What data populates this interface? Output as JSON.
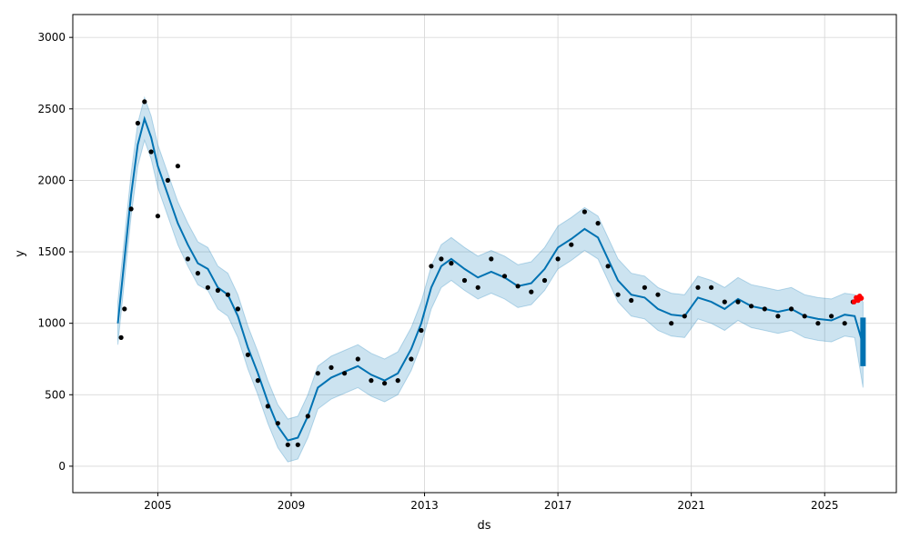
{
  "chart_data": {
    "type": "line",
    "title": "",
    "xlabel": "ds",
    "ylabel": "y",
    "grid": true,
    "xlim": [
      2002.45,
      2027.15
    ],
    "ylim": [
      -185,
      3160
    ],
    "x_ticks": [
      2005,
      2009,
      2013,
      2017,
      2021,
      2025
    ],
    "x_tick_labels": [
      "2005",
      "2009",
      "2013",
      "2017",
      "2021",
      "2025"
    ],
    "y_ticks": [
      0,
      500,
      1000,
      1500,
      2000,
      2500,
      3000
    ],
    "y_tick_labels": [
      "0",
      "500",
      "1000",
      "1500",
      "2000",
      "2500",
      "3000"
    ],
    "colors": {
      "observed": "#000000",
      "forecast": "#0072B2",
      "uncertainty": "#0072B2",
      "recent": "#ff0000",
      "grid": "#d9d9d9"
    },
    "series": [
      {
        "kind": "forecast",
        "x": [
          2003.8,
          2004.0,
          2004.2,
          2004.4,
          2004.6,
          2004.8,
          2005.0,
          2005.3,
          2005.6,
          2005.9,
          2006.2,
          2006.5,
          2006.8,
          2007.1,
          2007.4,
          2007.7,
          2008.0,
          2008.3,
          2008.6,
          2008.9,
          2009.2,
          2009.5,
          2009.8,
          2010.2,
          2010.6,
          2011.0,
          2011.4,
          2011.8,
          2012.2,
          2012.6,
          2012.9,
          2013.2,
          2013.5,
          2013.8,
          2014.2,
          2014.6,
          2015.0,
          2015.4,
          2015.8,
          2016.2,
          2016.6,
          2017.0,
          2017.4,
          2017.8,
          2018.2,
          2018.5,
          2018.8,
          2019.2,
          2019.6,
          2020.0,
          2020.4,
          2020.8,
          2021.2,
          2021.6,
          2022.0,
          2022.4,
          2022.8,
          2023.2,
          2023.6,
          2024.0,
          2024.4,
          2024.8,
          2025.2,
          2025.6,
          2025.9,
          2026.15
        ],
        "yhat": [
          1000,
          1450,
          1900,
          2250,
          2430,
          2300,
          2100,
          1900,
          1700,
          1550,
          1420,
          1380,
          1250,
          1200,
          1050,
          830,
          650,
          450,
          280,
          180,
          200,
          350,
          550,
          620,
          660,
          700,
          640,
          600,
          650,
          820,
          1000,
          1250,
          1400,
          1450,
          1380,
          1320,
          1360,
          1320,
          1260,
          1280,
          1380,
          1530,
          1590,
          1660,
          1600,
          1450,
          1300,
          1200,
          1180,
          1100,
          1060,
          1050,
          1180,
          1150,
          1100,
          1170,
          1120,
          1100,
          1080,
          1100,
          1050,
          1030,
          1020,
          1060,
          1050,
          850
        ],
        "yhat_lower": [
          850,
          1300,
          1750,
          2100,
          2280,
          2150,
          1950,
          1750,
          1550,
          1400,
          1270,
          1230,
          1100,
          1050,
          900,
          680,
          500,
          300,
          130,
          30,
          50,
          200,
          400,
          470,
          510,
          550,
          490,
          450,
          500,
          670,
          850,
          1100,
          1250,
          1300,
          1230,
          1170,
          1210,
          1170,
          1110,
          1130,
          1230,
          1380,
          1440,
          1510,
          1450,
          1300,
          1150,
          1050,
          1030,
          950,
          910,
          900,
          1030,
          1000,
          950,
          1020,
          970,
          950,
          930,
          950,
          900,
          880,
          870,
          910,
          900,
          550
        ],
        "yhat_upper": [
          1150,
          1600,
          2050,
          2400,
          2580,
          2450,
          2250,
          2050,
          1850,
          1700,
          1570,
          1530,
          1400,
          1350,
          1200,
          980,
          800,
          600,
          430,
          330,
          350,
          500,
          700,
          770,
          810,
          850,
          790,
          750,
          800,
          970,
          1150,
          1400,
          1550,
          1600,
          1530,
          1470,
          1510,
          1470,
          1410,
          1430,
          1530,
          1680,
          1740,
          1810,
          1750,
          1600,
          1450,
          1350,
          1330,
          1250,
          1210,
          1200,
          1330,
          1300,
          1250,
          1320,
          1270,
          1250,
          1230,
          1250,
          1200,
          1180,
          1170,
          1210,
          1200,
          1150
        ]
      },
      {
        "kind": "observed",
        "x": [
          2003.9,
          2004.0,
          2004.2,
          2004.4,
          2004.6,
          2004.8,
          2005.0,
          2005.3,
          2005.6,
          2005.9,
          2006.2,
          2006.5,
          2006.8,
          2007.1,
          2007.4,
          2007.7,
          2008.0,
          2008.3,
          2008.6,
          2008.9,
          2009.2,
          2009.5,
          2009.8,
          2010.2,
          2010.6,
          2011.0,
          2011.4,
          2011.8,
          2012.2,
          2012.6,
          2012.9,
          2013.2,
          2013.5,
          2013.8,
          2014.2,
          2014.6,
          2015.0,
          2015.4,
          2015.8,
          2016.2,
          2016.6,
          2017.0,
          2017.4,
          2017.8,
          2018.2,
          2018.5,
          2018.8,
          2019.2,
          2019.6,
          2020.0,
          2020.4,
          2020.8,
          2021.2,
          2021.6,
          2022.0,
          2022.4,
          2022.8,
          2023.2,
          2023.6,
          2024.0,
          2024.4,
          2024.8,
          2025.2,
          2025.6,
          2025.85
        ],
        "y": [
          900,
          1100,
          1800,
          2400,
          2550,
          2200,
          1750,
          2000,
          2100,
          1450,
          1350,
          1250,
          1230,
          1200,
          1100,
          780,
          600,
          420,
          300,
          150,
          150,
          350,
          650,
          690,
          650,
          750,
          600,
          580,
          600,
          750,
          950,
          1400,
          1450,
          1420,
          1300,
          1250,
          1450,
          1330,
          1260,
          1220,
          1300,
          1450,
          1550,
          1780,
          1700,
          1400,
          1200,
          1160,
          1250,
          1200,
          1000,
          1050,
          1250,
          1250,
          1150,
          1150,
          1120,
          1100,
          1050,
          1100,
          1050,
          1000,
          1050,
          1000,
          1150
        ]
      },
      {
        "kind": "recent",
        "x": [
          2025.88,
          2025.95,
          2026.0,
          2026.05,
          2026.1
        ],
        "y": [
          1150,
          1180,
          1160,
          1190,
          1175
        ]
      }
    ]
  }
}
